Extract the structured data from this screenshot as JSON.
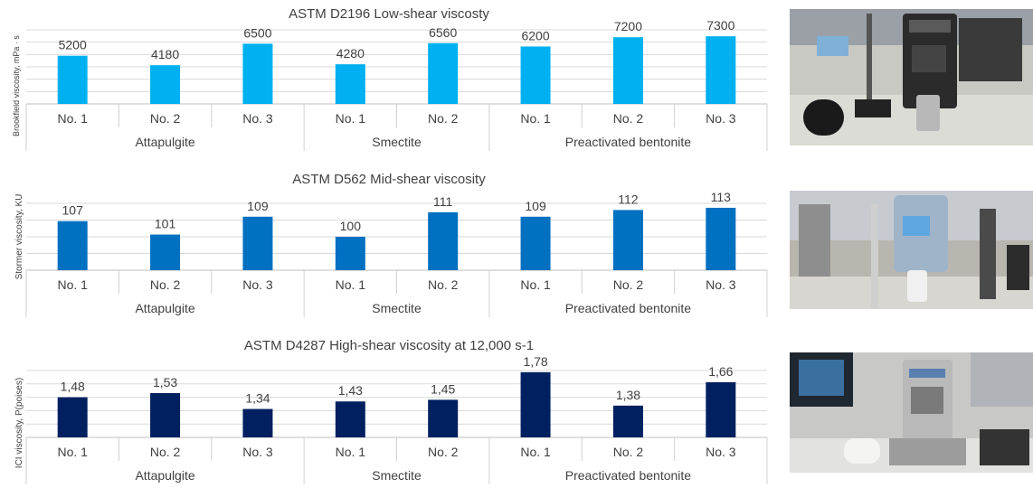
{
  "chart_data": [
    {
      "type": "bar",
      "title": "ASTM  D2196  Low-shear viscosty",
      "ylabel": "Brookfield viscosity, mPa · s",
      "xlabel": "",
      "color": "#00B0F0",
      "ylim": [
        0,
        8000
      ],
      "gridlines": true,
      "groups": [
        {
          "name": "Attapulgite",
          "categories": [
            "No. 1",
            "No. 2",
            "No. 3"
          ]
        },
        {
          "name": "Smectite",
          "categories": [
            "No. 1",
            "No. 2"
          ]
        },
        {
          "name": "Preactivated bentonite",
          "categories": [
            "No. 1",
            "No. 2",
            "No. 3"
          ]
        }
      ],
      "values": [
        5200,
        4180,
        6500,
        4280,
        6560,
        6200,
        7200,
        7300
      ],
      "labels": [
        "5200",
        "4180",
        "6500",
        "4280",
        "6560",
        "6200",
        "7200",
        "7300"
      ]
    },
    {
      "type": "bar",
      "title": "ASTM  D562  Mid-shear viscosity",
      "ylabel": "Stormer viscosity, KU",
      "xlabel": "",
      "color": "#0070C0",
      "ylim": [
        85,
        115
      ],
      "gridlines": true,
      "groups": [
        {
          "name": "Attapulgite",
          "categories": [
            "No. 1",
            "No. 2",
            "No. 3"
          ]
        },
        {
          "name": "Smectite",
          "categories": [
            "No. 1",
            "No. 2"
          ]
        },
        {
          "name": "Preactivated bentonite",
          "categories": [
            "No. 1",
            "No. 2",
            "No. 3"
          ]
        }
      ],
      "values": [
        107,
        101,
        109,
        100,
        111,
        109,
        112,
        113
      ],
      "labels": [
        "107",
        "101",
        "109",
        "100",
        "111",
        "109",
        "112",
        "113"
      ]
    },
    {
      "type": "bar",
      "title": "ASTM  D4287  High-shear viscosity at 12,000 s-1",
      "ylabel": "ICI viscosity, P(poises)",
      "xlabel": "",
      "color": "#002060",
      "ylim": [
        1.0,
        1.8
      ],
      "gridlines": true,
      "groups": [
        {
          "name": "Attapulgite",
          "categories": [
            "No. 1",
            "No. 2",
            "No. 3"
          ]
        },
        {
          "name": "Smectite",
          "categories": [
            "No. 1",
            "No. 2"
          ]
        },
        {
          "name": "Preactivated bentonite",
          "categories": [
            "No. 1",
            "No. 2",
            "No. 3"
          ]
        }
      ],
      "values": [
        1.48,
        1.53,
        1.34,
        1.43,
        1.45,
        1.78,
        1.38,
        1.66
      ],
      "labels": [
        "1,48",
        "1,53",
        "1,34",
        "1,43",
        "1,45",
        "1,78",
        "1,38",
        "1,66"
      ]
    }
  ],
  "photos": [
    {
      "icon": "brookfield-viscometer-photo-icon"
    },
    {
      "icon": "stormer-viscometer-photo-icon"
    },
    {
      "icon": "ici-cone-plate-viscometer-photo-icon"
    }
  ]
}
